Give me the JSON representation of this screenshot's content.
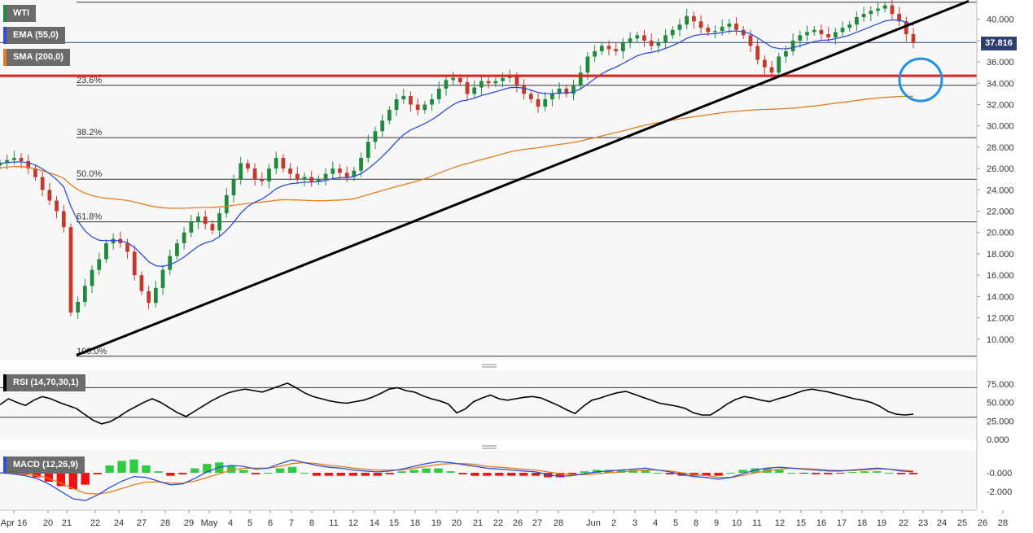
{
  "chart_data": {
    "type": "candlestick",
    "instrument": "WTI",
    "price_badge": "37.816",
    "colors": {
      "up": "#1f8a3c",
      "down": "#c23a2b",
      "ema": "#2f4fd6",
      "sma": "#e87b1e",
      "trend": "#000000",
      "support": "#e0201c",
      "circle": "#1e90e6",
      "rsi": "#000000",
      "macd": "#2f4fd6",
      "signal": "#e87b1e",
      "hist_pos": "#2ecc40",
      "hist_neg": "#ee1111"
    },
    "main_axis": {
      "ylim": [
        8,
        41.5
      ],
      "ticks": [
        "40.000",
        "38.000",
        "36.000",
        "34.000",
        "32.000",
        "30.000",
        "28.000",
        "26.000",
        "24.000",
        "22.000",
        "20.000",
        "18.000",
        "16.000",
        "14.000",
        "12.000",
        "10.000"
      ]
    },
    "x_axis": {
      "labels": [
        "Apr 16",
        "20",
        "21",
        "22",
        "24",
        "27",
        "28",
        "29",
        "May",
        "4",
        "5",
        "6",
        "7",
        "8",
        "11",
        "12",
        "14",
        "15",
        "18",
        "19",
        "20",
        "21",
        "22",
        "26",
        "27",
        "28",
        "Jun",
        "2",
        "3",
        "4",
        "5",
        "8",
        "9",
        "10",
        "11",
        "12",
        "15",
        "16",
        "17",
        "18",
        "19",
        "22",
        "23",
        "24",
        "25",
        "26",
        "28"
      ],
      "label_x": [
        17,
        59,
        82,
        117,
        146,
        174,
        203,
        232,
        257,
        283,
        307,
        332,
        358,
        383,
        410,
        434,
        460,
        484,
        510,
        536,
        561,
        587,
        612,
        636,
        660,
        686,
        729,
        754,
        780,
        805,
        830,
        855,
        880,
        905,
        930,
        958,
        984,
        1009,
        1034,
        1059,
        1083,
        1110,
        1134,
        1157,
        1182,
        1207,
        1232
      ]
    },
    "indicators": [
      {
        "name": "WTI"
      },
      {
        "name": "EMA (55,0)"
      },
      {
        "name": "SMA (200,0)"
      }
    ],
    "fibonacci": [
      {
        "label": "100.0%",
        "price": 8.4
      },
      {
        "label": "61.8%",
        "price": 21.0
      },
      {
        "label": "50.0%",
        "price": 25.0
      },
      {
        "label": "38.2%",
        "price": 28.9
      },
      {
        "label": "23.6%",
        "price": 33.8
      }
    ],
    "support_level": 34.7,
    "top_level": 41.6,
    "last_price": 37.816,
    "trendline": [
      [
        0,
        8.5
      ],
      [
        100,
        41.7
      ]
    ],
    "close_series": [
      26.5,
      26.8,
      27.0,
      26.7,
      26.0,
      25.2,
      24.0,
      23.0,
      22.0,
      20.5,
      12.5,
      13.5,
      15.0,
      16.5,
      17.5,
      19.0,
      19.4,
      19.0,
      18.2,
      16.0,
      14.5,
      13.4,
      14.8,
      16.5,
      17.8,
      19.0,
      20.0,
      21.0,
      21.5,
      20.8,
      20.2,
      21.8,
      23.5,
      25.0,
      26.5,
      26.0,
      25.0,
      24.8,
      26.0,
      27.0,
      26.0,
      25.5,
      25.0,
      25.2,
      24.8,
      25.0,
      25.5,
      26.0,
      25.6,
      25.2,
      25.8,
      27.0,
      28.5,
      29.5,
      30.5,
      31.5,
      32.5,
      32.8,
      32.0,
      31.5,
      32.0,
      32.5,
      33.5,
      34.3,
      34.5,
      34.1,
      33.0,
      33.6,
      34.2,
      34.0,
      34.2,
      34.5,
      34.6,
      33.8,
      33.0,
      32.5,
      31.8,
      32.5,
      33.0,
      33.5,
      33.0,
      33.8,
      35.0,
      36.5,
      37.0,
      37.5,
      37.2,
      37.0,
      37.8,
      38.2,
      38.5,
      38.0,
      37.5,
      37.8,
      38.5,
      39.0,
      39.5,
      40.3,
      39.8,
      39.2,
      38.8,
      38.9,
      39.3,
      39.6,
      39.0,
      38.5,
      37.5,
      36.2,
      35.5,
      35.0,
      36.5,
      37.0,
      38.0,
      38.5,
      38.8,
      39.0,
      38.6,
      38.3,
      38.8,
      39.2,
      39.5,
      40.2,
      40.5,
      40.8,
      41.0,
      41.3,
      40.5,
      39.8,
      38.6,
      37.8
    ],
    "rsi": {
      "label": "RSI (14,70,30,1)",
      "ylim": [
        0,
        88
      ],
      "ticks": [
        "75.000",
        "50.000",
        "25.000",
        "0.000"
      ],
      "levels": [
        70,
        30
      ],
      "values": [
        47,
        55,
        50,
        46,
        53,
        58,
        55,
        50,
        46,
        42,
        34,
        26,
        21,
        24,
        30,
        38,
        44,
        50,
        55,
        50,
        43,
        36,
        31,
        38,
        45,
        52,
        58,
        63,
        66,
        68,
        66,
        64,
        68,
        72,
        76,
        70,
        63,
        58,
        55,
        52,
        50,
        49,
        51,
        53,
        57,
        62,
        68,
        70,
        66,
        64,
        59,
        55,
        52,
        48,
        36,
        41,
        51,
        56,
        60,
        55,
        53,
        55,
        57,
        58,
        56,
        51,
        46,
        40,
        35,
        45,
        53,
        56,
        60,
        63,
        65,
        61,
        57,
        53,
        49,
        47,
        45,
        42,
        36,
        33,
        33,
        40,
        48,
        54,
        58,
        56,
        53,
        51,
        55,
        58,
        62,
        66,
        68,
        66,
        64,
        61,
        58,
        55,
        53,
        50,
        45,
        38,
        34,
        33,
        34
      ]
    },
    "macd": {
      "label": "MACD (12,26,9)",
      "ylim": [
        -3.6,
        2.2
      ],
      "ticks": [
        "-0.000",
        "-2.000"
      ],
      "line": [
        0,
        -0.1,
        -0.3,
        -0.6,
        -1.2,
        -2.0,
        -2.8,
        -3.0,
        -2.4,
        -1.6,
        -0.9,
        -0.4,
        -0.5,
        -0.9,
        -1.3,
        -1.2,
        -0.6,
        0.1,
        0.6,
        0.8,
        0.7,
        0.4,
        0.5,
        1.0,
        1.4,
        1.1,
        0.8,
        0.6,
        0.5,
        0.3,
        0.2,
        0.1,
        0.2,
        0.4,
        0.7,
        1.0,
        1.2,
        1.1,
        0.9,
        0.7,
        0.5,
        0.4,
        0.3,
        0.2,
        0.1,
        -0.2,
        -0.4,
        -0.3,
        -0.1,
        0.1,
        0.2,
        0.3,
        0.4,
        0.5,
        0.3,
        0.1,
        -0.2,
        -0.4,
        -0.5,
        -0.7,
        -0.5,
        -0.1,
        0.3,
        0.5,
        0.6,
        0.5,
        0.4,
        0.3,
        0.2,
        0.2,
        0.3,
        0.4,
        0.5,
        0.4,
        0.2,
        0.1
      ],
      "signal": [
        0,
        -0.05,
        -0.15,
        -0.3,
        -0.6,
        -1.1,
        -1.7,
        -2.2,
        -2.3,
        -2.1,
        -1.7,
        -1.3,
        -1.0,
        -1.0,
        -1.1,
        -1.1,
        -0.9,
        -0.5,
        -0.1,
        0.3,
        0.5,
        0.5,
        0.5,
        0.7,
        1.0,
        1.1,
        1.0,
        0.8,
        0.7,
        0.5,
        0.4,
        0.3,
        0.3,
        0.3,
        0.5,
        0.7,
        0.9,
        1.0,
        1.0,
        0.9,
        0.7,
        0.6,
        0.5,
        0.4,
        0.3,
        0.1,
        -0.1,
        -0.2,
        -0.2,
        -0.1,
        0.0,
        0.1,
        0.2,
        0.3,
        0.3,
        0.2,
        0.0,
        -0.2,
        -0.3,
        -0.5,
        -0.5,
        -0.3,
        0.0,
        0.2,
        0.4,
        0.5,
        0.45,
        0.4,
        0.3,
        0.25,
        0.25,
        0.3,
        0.4,
        0.4,
        0.3,
        0.2
      ]
    }
  }
}
